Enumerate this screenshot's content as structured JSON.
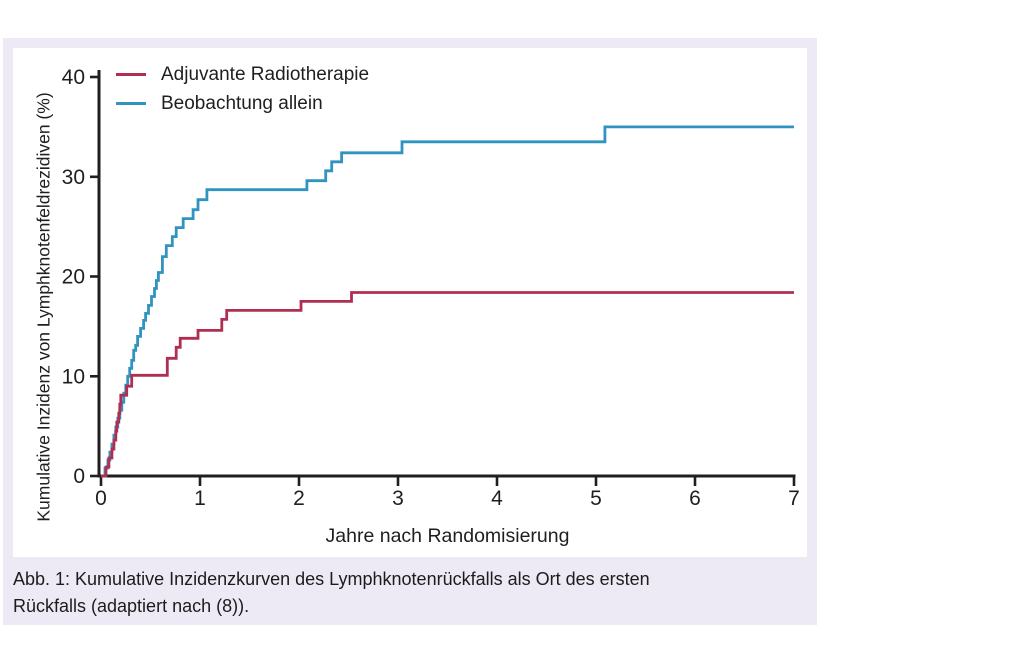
{
  "panel": {
    "background": "#edeaf6"
  },
  "caption": {
    "line1": "Abb. 1: Kumulative Inzidenzkurven des Lymphknotenrückfalls als Ort des ersten",
    "line2": "Rückfalls (adaptiert nach (8))."
  },
  "chart_data": {
    "type": "line",
    "subtype": "step-after",
    "title": "",
    "xlabel": "Jahre nach Randomisierung",
    "ylabel": "Kumulative Inzidenz von Lymphknotenfeldrezidiven (%)",
    "xlim": [
      0,
      7
    ],
    "ylim": [
      0,
      40
    ],
    "x_ticks": [
      0,
      1,
      2,
      3,
      4,
      5,
      6,
      7
    ],
    "y_ticks": [
      0,
      10,
      20,
      30,
      40
    ],
    "grid": false,
    "legend_position": "top-left",
    "axis_color": "#1f1f1f",
    "text_color": "#1f1f1f",
    "series": [
      {
        "name": "Adjuvante Radiotherapie",
        "color": "#b02e50",
        "points": [
          [
            0,
            0
          ],
          [
            0.05,
            0.9
          ],
          [
            0.08,
            1.8
          ],
          [
            0.11,
            2.7
          ],
          [
            0.13,
            3.6
          ],
          [
            0.15,
            4.5
          ],
          [
            0.16,
            5.4
          ],
          [
            0.18,
            6.3
          ],
          [
            0.19,
            7.2
          ],
          [
            0.2,
            8.1
          ],
          [
            0.26,
            9.0
          ],
          [
            0.31,
            10.1
          ],
          [
            0.67,
            11.8
          ],
          [
            0.76,
            12.9
          ],
          [
            0.8,
            13.8
          ],
          [
            0.98,
            14.6
          ],
          [
            1.22,
            15.7
          ],
          [
            1.27,
            16.6
          ],
          [
            2.02,
            17.5
          ],
          [
            2.53,
            18.4
          ],
          [
            7,
            18.4
          ]
        ]
      },
      {
        "name": "Beobachtung allein",
        "color": "#3093c0",
        "points": [
          [
            0,
            0
          ],
          [
            0.04,
            0.8
          ],
          [
            0.07,
            1.6
          ],
          [
            0.09,
            2.4
          ],
          [
            0.11,
            3.2
          ],
          [
            0.13,
            4.1
          ],
          [
            0.15,
            4.9
          ],
          [
            0.17,
            5.8
          ],
          [
            0.19,
            6.6
          ],
          [
            0.21,
            7.4
          ],
          [
            0.23,
            8.3
          ],
          [
            0.25,
            9.1
          ],
          [
            0.27,
            10.0
          ],
          [
            0.29,
            10.8
          ],
          [
            0.31,
            11.6
          ],
          [
            0.33,
            12.6
          ],
          [
            0.35,
            13.1
          ],
          [
            0.37,
            14.0
          ],
          [
            0.4,
            14.8
          ],
          [
            0.43,
            15.6
          ],
          [
            0.45,
            16.3
          ],
          [
            0.48,
            17.1
          ],
          [
            0.51,
            18.0
          ],
          [
            0.54,
            18.8
          ],
          [
            0.56,
            19.6
          ],
          [
            0.58,
            20.4
          ],
          [
            0.62,
            22.0
          ],
          [
            0.66,
            23.1
          ],
          [
            0.72,
            24.0
          ],
          [
            0.76,
            24.9
          ],
          [
            0.83,
            25.8
          ],
          [
            0.93,
            26.7
          ],
          [
            0.98,
            27.7
          ],
          [
            1.07,
            28.7
          ],
          [
            2.08,
            29.6
          ],
          [
            2.27,
            30.6
          ],
          [
            2.33,
            31.5
          ],
          [
            2.43,
            32.4
          ],
          [
            3.04,
            33.5
          ],
          [
            5.09,
            35.0
          ],
          [
            7,
            35.0
          ]
        ]
      }
    ]
  }
}
